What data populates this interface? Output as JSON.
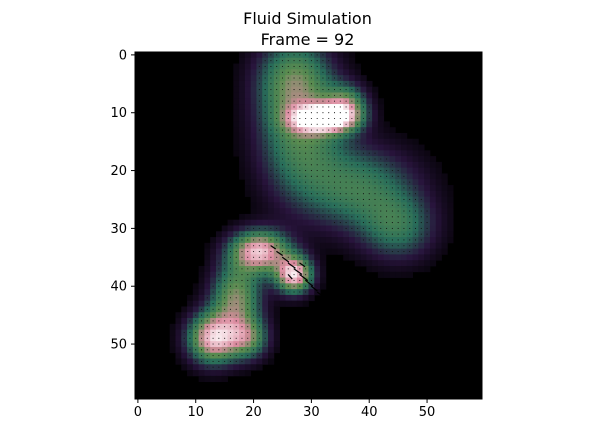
{
  "chart_data": {
    "type": "heatmap",
    "title": "Fluid Simulation",
    "subtitle": "Frame = 92",
    "grid": false,
    "colormap": "cubehelix",
    "background_color": "#000000",
    "xlim": [
      -0.5,
      59.5
    ],
    "ylim": [
      59.5,
      -0.5
    ],
    "x_ticks": [
      0,
      10,
      20,
      30,
      40,
      50
    ],
    "y_ticks": [
      0,
      10,
      20,
      30,
      40,
      50
    ],
    "x_tick_labels": [
      "0",
      "10",
      "20",
      "30",
      "40",
      "50"
    ],
    "y_tick_labels": [
      "0",
      "10",
      "20",
      "30",
      "40",
      "50"
    ],
    "density_blobs": [
      {
        "x": 27,
        "y": 4,
        "sx": 4.5,
        "sy": 5,
        "v": 0.45
      },
      {
        "x": 28,
        "y": 14,
        "sx": 5,
        "sy": 7,
        "v": 0.45
      },
      {
        "x": 32,
        "y": 11,
        "sx": 3.5,
        "sy": 1.6,
        "v": 1.0
      },
      {
        "x": 36,
        "y": 9,
        "sx": 2.5,
        "sy": 2.5,
        "v": 0.55
      },
      {
        "x": 38,
        "y": 23,
        "sx": 7,
        "sy": 5,
        "v": 0.42
      },
      {
        "x": 45,
        "y": 30,
        "sx": 4.5,
        "sy": 4,
        "v": 0.35
      },
      {
        "x": 21,
        "y": 34,
        "sx": 3.5,
        "sy": 2.5,
        "v": 0.85
      },
      {
        "x": 27,
        "y": 38,
        "sx": 2.2,
        "sy": 2.2,
        "v": 0.9
      },
      {
        "x": 17,
        "y": 42,
        "sx": 3,
        "sy": 4,
        "v": 0.6
      },
      {
        "x": 13,
        "y": 49,
        "sx": 3,
        "sy": 3,
        "v": 0.85
      },
      {
        "x": 19,
        "y": 49,
        "sx": 2.5,
        "sy": 2.5,
        "v": 0.5
      }
    ],
    "velocity_arrows": [
      {
        "x": 23,
        "y": 33,
        "u": 1.2,
        "v": 0.8
      },
      {
        "x": 24,
        "y": 34,
        "u": 1.5,
        "v": 1.0
      },
      {
        "x": 25,
        "y": 35,
        "u": 1.6,
        "v": 1.2
      },
      {
        "x": 26,
        "y": 36,
        "u": 1.8,
        "v": 1.3
      },
      {
        "x": 27,
        "y": 37,
        "u": 2.0,
        "v": 1.4
      },
      {
        "x": 28,
        "y": 38,
        "u": 2.0,
        "v": 1.5
      },
      {
        "x": 29,
        "y": 39,
        "u": 1.8,
        "v": 1.4
      },
      {
        "x": 30,
        "y": 40,
        "u": 1.5,
        "v": 1.2
      },
      {
        "x": 31,
        "y": 41,
        "u": 1.2,
        "v": 0.9
      },
      {
        "x": 26,
        "y": 38,
        "u": 1.0,
        "v": 1.1
      },
      {
        "x": 28,
        "y": 36,
        "u": 1.3,
        "v": 0.9
      }
    ]
  }
}
